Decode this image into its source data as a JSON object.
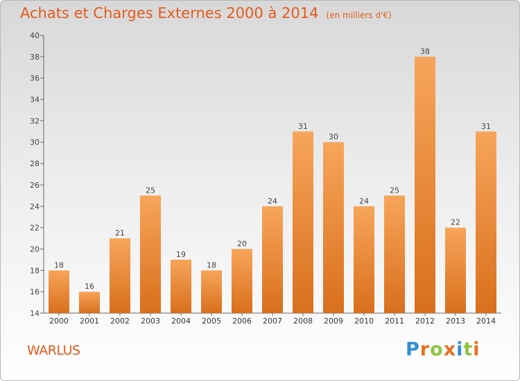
{
  "header": {
    "title": "Achats et Charges Externes 2000 à 2014",
    "unit": "(en milliers d'€)"
  },
  "footer": {
    "town": "WARLUS",
    "brand_letters": [
      "P",
      "r",
      "o",
      "x",
      "i",
      "t",
      "i"
    ],
    "brand_colors": [
      "#2f8fd8",
      "#e8701f",
      "#8cc63f",
      "#e8701f",
      "#2f8fd8",
      "#8cc63f",
      "#e8701f"
    ]
  },
  "colors": {
    "bar_light": "#f7a55a",
    "bar_dark": "#d96f1c",
    "accent": "#e35b1e"
  },
  "chart_data": {
    "type": "bar",
    "categories": [
      "2000",
      "2001",
      "2002",
      "2003",
      "2004",
      "2005",
      "2006",
      "2007",
      "2008",
      "2009",
      "2010",
      "2011",
      "2012",
      "2013",
      "2014"
    ],
    "values": [
      18,
      16,
      21,
      25,
      19,
      18,
      20,
      24,
      31,
      30,
      24,
      25,
      38,
      22,
      31
    ],
    "title": "Achats et Charges Externes 2000 à 2014",
    "ylim": [
      14,
      40
    ],
    "yticks": [
      14,
      16,
      18,
      20,
      22,
      24,
      26,
      28,
      30,
      32,
      34,
      36,
      38,
      40
    ],
    "grid": false,
    "data_labels": true
  }
}
